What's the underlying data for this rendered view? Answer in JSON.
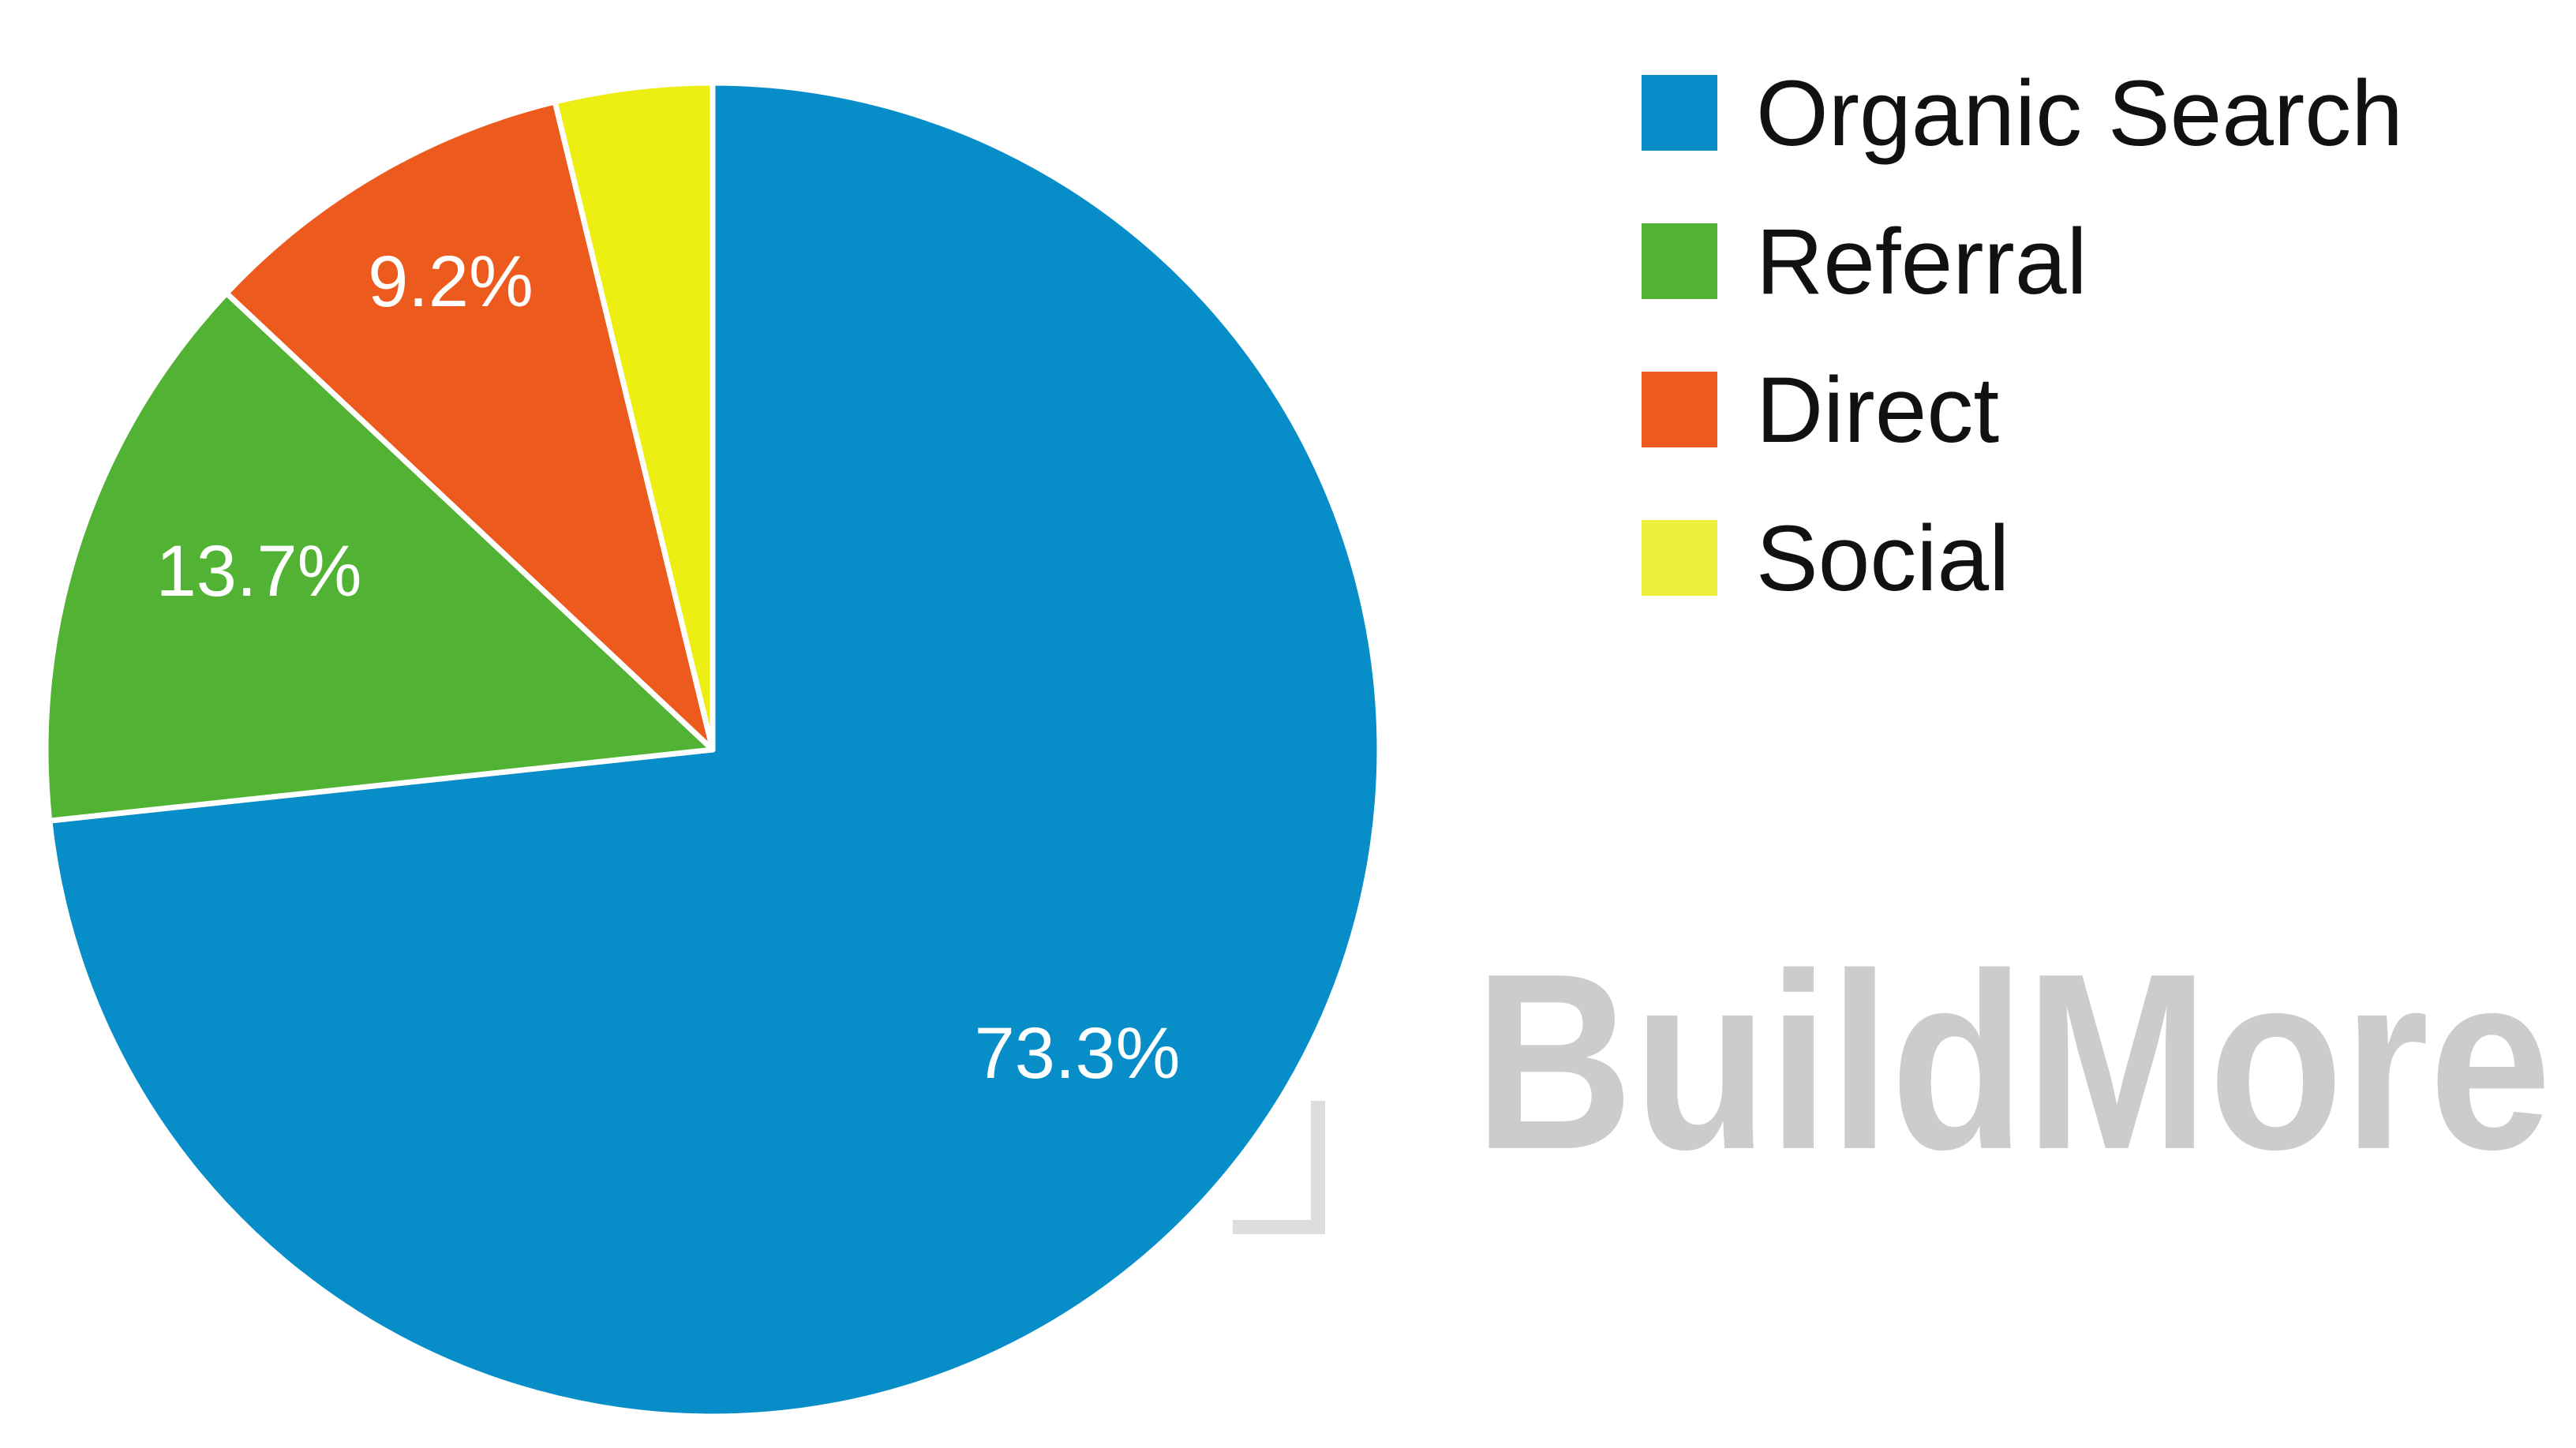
{
  "chart_data": {
    "type": "pie",
    "slices": [
      {
        "name": "Organic Search",
        "value": 73.3,
        "color": "#078dc8",
        "label": "73.3%"
      },
      {
        "name": "Referral",
        "value": 13.7,
        "color": "#52b234",
        "label": "13.7%"
      },
      {
        "name": "Direct",
        "value": 9.2,
        "color": "#ed5a1d",
        "label": "9.2%"
      },
      {
        "name": "Social",
        "value": 3.8,
        "color": "#edef12",
        "label": ""
      }
    ],
    "legend": {
      "placement": "top-right",
      "items": [
        {
          "label": "Organic Search",
          "color": "#078dc8"
        },
        {
          "label": "Referral",
          "color": "#52b234"
        },
        {
          "label": "Direct",
          "color": "#ed5a1d"
        },
        {
          "label": "Social",
          "color": "#eeee3d"
        }
      ]
    }
  },
  "watermark": {
    "text": "BuildMore",
    "color": "#cccccc"
  }
}
